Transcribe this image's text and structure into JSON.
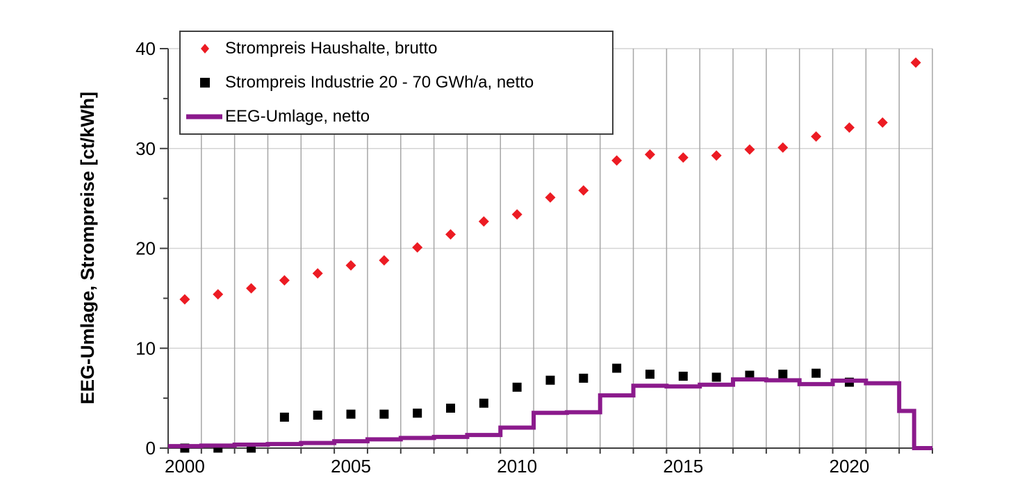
{
  "chart_data": {
    "type": "scatter",
    "title": "",
    "xlabel": "",
    "ylabel": "EEG-Umlage, Strompreise [ct/kWh]",
    "xlim": [
      2000,
      2023
    ],
    "ylim": [
      0,
      40
    ],
    "x_tick_years_labeled": [
      2000,
      2005,
      2010,
      2015,
      2020
    ],
    "x_tick_every_year": true,
    "y_major_ticks": [
      0,
      10,
      20,
      30,
      40
    ],
    "y_minor_ticks": [
      5,
      15,
      25,
      35
    ],
    "grid": {
      "vertical": "every-year",
      "horizontal": "major-ticks"
    },
    "legend_position": "top-left-inside",
    "years": [
      2000,
      2001,
      2002,
      2003,
      2004,
      2005,
      2006,
      2007,
      2008,
      2009,
      2010,
      2011,
      2012,
      2013,
      2014,
      2015,
      2016,
      2017,
      2018,
      2019,
      2020,
      2021,
      2022
    ],
    "series": [
      {
        "name": "Strompreis Haushalte, brutto",
        "kind": "scatter",
        "marker": "diamond",
        "color": "#ec1b23",
        "values": [
          14.9,
          15.4,
          16.0,
          16.8,
          17.5,
          18.3,
          18.8,
          20.1,
          21.4,
          22.7,
          23.4,
          25.1,
          25.8,
          28.8,
          29.4,
          29.1,
          29.3,
          29.9,
          30.1,
          31.2,
          32.1,
          32.6,
          38.6
        ]
      },
      {
        "name": "Strompreis Industrie 20 - 70 GWh/a, netto",
        "kind": "scatter",
        "marker": "square",
        "color": "#000000",
        "values": [
          0.0,
          0.0,
          0.0,
          3.1,
          3.3,
          3.4,
          3.4,
          3.5,
          4.0,
          4.5,
          6.1,
          6.8,
          7.0,
          8.0,
          7.4,
          7.2,
          7.1,
          7.3,
          7.4,
          7.5,
          6.6,
          null,
          null
        ]
      },
      {
        "name": "EEG-Umlage, netto",
        "kind": "step-line",
        "marker": "line",
        "color": "#8b1a8c",
        "steps": [
          [
            2000,
            2001,
            0.2
          ],
          [
            2001,
            2002,
            0.25
          ],
          [
            2002,
            2003,
            0.35
          ],
          [
            2003,
            2004,
            0.41
          ],
          [
            2004,
            2005,
            0.51
          ],
          [
            2005,
            2006,
            0.69
          ],
          [
            2006,
            2007,
            0.88
          ],
          [
            2007,
            2008,
            1.02
          ],
          [
            2008,
            2009,
            1.12
          ],
          [
            2009,
            2010,
            1.31
          ],
          [
            2010,
            2011,
            2.05
          ],
          [
            2011,
            2012,
            3.53
          ],
          [
            2012,
            2013,
            3.59
          ],
          [
            2013,
            2014,
            5.28
          ],
          [
            2014,
            2015,
            6.24
          ],
          [
            2015,
            2016,
            6.17
          ],
          [
            2016,
            2017,
            6.35
          ],
          [
            2017,
            2018,
            6.88
          ],
          [
            2018,
            2019,
            6.79
          ],
          [
            2019,
            2020,
            6.41
          ],
          [
            2020,
            2021,
            6.76
          ],
          [
            2021,
            2022,
            6.5
          ],
          [
            2022,
            2022.45,
            3.72
          ],
          [
            2022.45,
            2023,
            0.0
          ]
        ]
      }
    ],
    "colors": {
      "axis": "#3f3f3f",
      "grid_vertical": "#a6a6a6",
      "grid_horizontal": "#d4d4d4",
      "background": "#ffffff"
    }
  }
}
